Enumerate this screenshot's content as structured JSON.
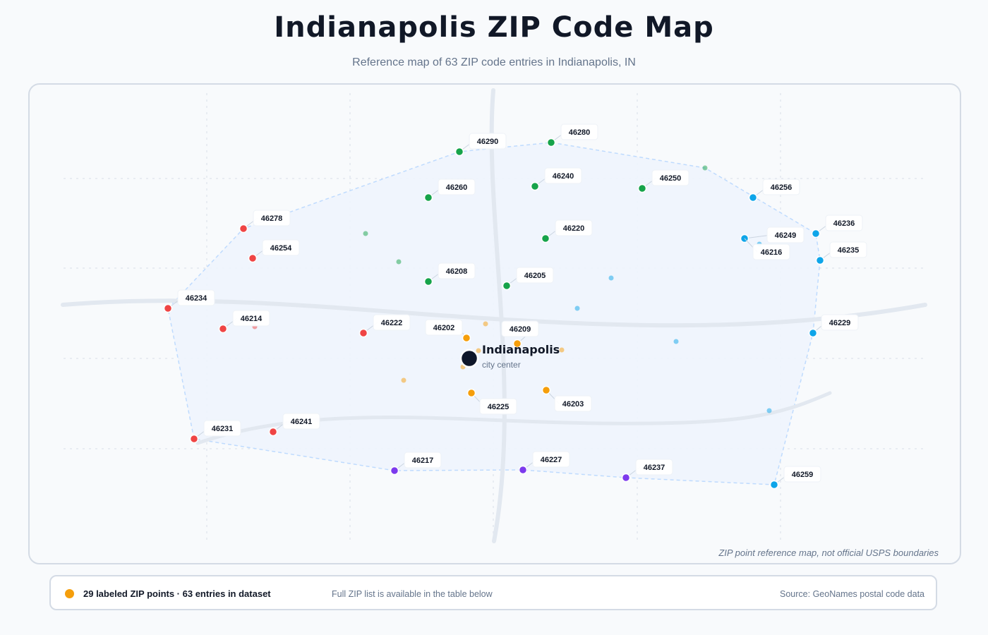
{
  "title": "Indianapolis ZIP Code Map",
  "subtitle": "Reference map of 63 ZIP code entries in Indianapolis, IN",
  "colors": {
    "north": "#16a34a",
    "east": "#0ea5e9",
    "west": "#ef4444",
    "central": "#f59e0b",
    "south": "#7c3aed",
    "city_marker": "#0f172a",
    "region_fill": "#eef4fd",
    "road": "#e2e8f0"
  },
  "city": {
    "name": "Indianapolis",
    "sublabel": "city center"
  },
  "labeled_zips": [
    {
      "zip": "46290",
      "group": "north"
    },
    {
      "zip": "46280",
      "group": "north"
    },
    {
      "zip": "46260",
      "group": "north"
    },
    {
      "zip": "46240",
      "group": "north"
    },
    {
      "zip": "46250",
      "group": "north"
    },
    {
      "zip": "46220",
      "group": "north"
    },
    {
      "zip": "46208",
      "group": "north"
    },
    {
      "zip": "46205",
      "group": "north"
    },
    {
      "zip": "46256",
      "group": "east"
    },
    {
      "zip": "46236",
      "group": "east"
    },
    {
      "zip": "46249",
      "group": "east"
    },
    {
      "zip": "46216",
      "group": "east"
    },
    {
      "zip": "46235",
      "group": "east"
    },
    {
      "zip": "46229",
      "group": "east"
    },
    {
      "zip": "46259",
      "group": "east"
    },
    {
      "zip": "46278",
      "group": "west"
    },
    {
      "zip": "46254",
      "group": "west"
    },
    {
      "zip": "46234",
      "group": "west"
    },
    {
      "zip": "46214",
      "group": "west"
    },
    {
      "zip": "46222",
      "group": "west"
    },
    {
      "zip": "46231",
      "group": "west"
    },
    {
      "zip": "46241",
      "group": "west"
    },
    {
      "zip": "46202",
      "group": "central"
    },
    {
      "zip": "46209",
      "group": "central"
    },
    {
      "zip": "46225",
      "group": "central"
    },
    {
      "zip": "46203",
      "group": "central"
    },
    {
      "zip": "46217",
      "group": "south"
    },
    {
      "zip": "46227",
      "group": "south"
    },
    {
      "zip": "46237",
      "group": "south"
    }
  ],
  "footnote": "ZIP point reference map, not official USPS boundaries",
  "legend": {
    "main": "29 labeled ZIP points · 63 entries in dataset",
    "note": "Full ZIP list is available in the table below",
    "source": "Source: GeoNames postal code data"
  }
}
